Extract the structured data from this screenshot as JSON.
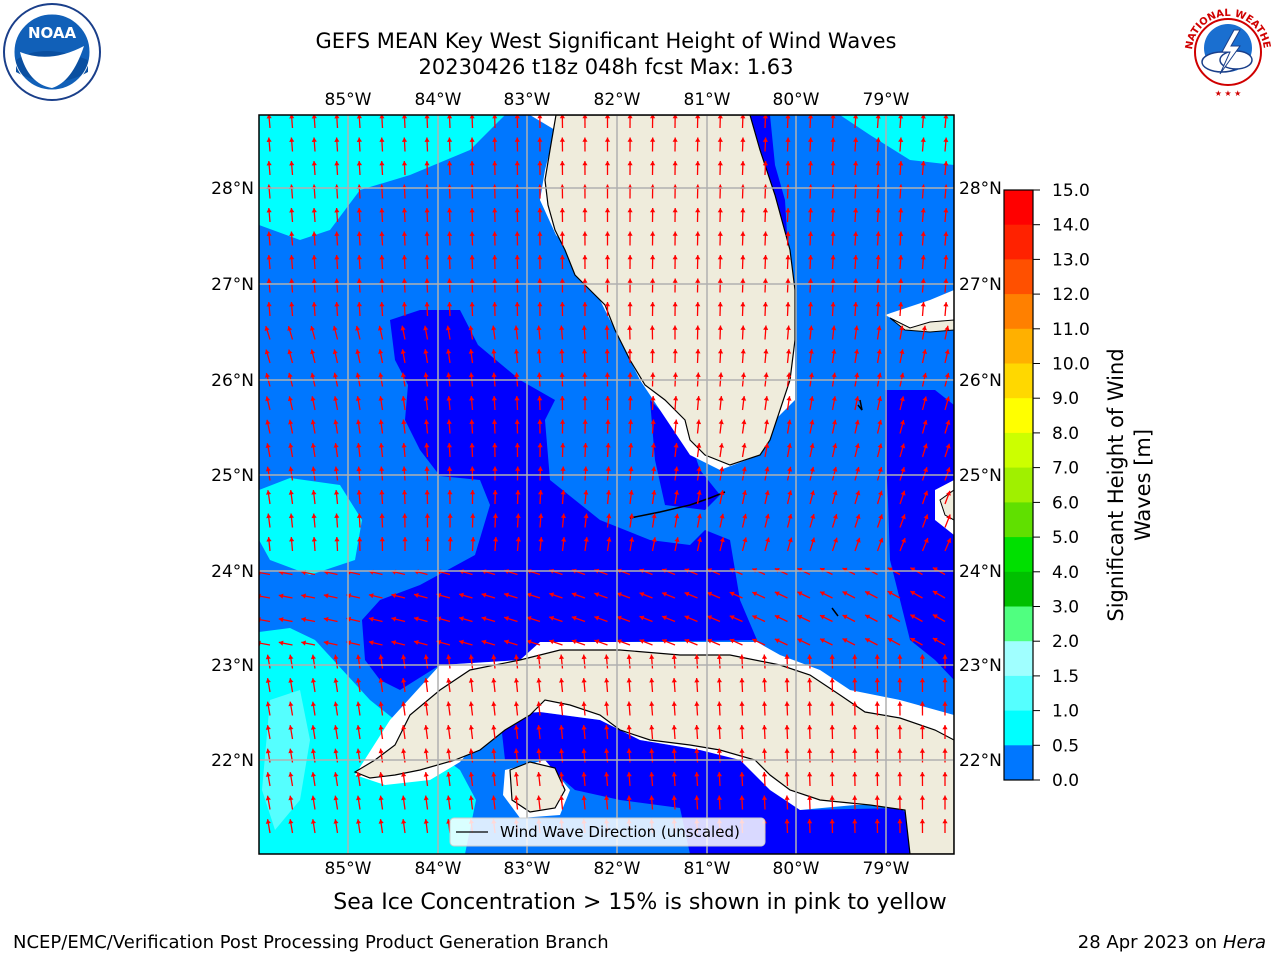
{
  "title": {
    "line1": "GEFS MEAN Key West Significant Height of Wind Waves",
    "line2": "20230426 t18z 048h fcst   Max: 1.63"
  },
  "map": {
    "lon_labels": [
      "85°W",
      "84°W",
      "83°W",
      "82°W",
      "81°W",
      "80°W",
      "79°W"
    ],
    "lat_labels": [
      "28°N",
      "27°N",
      "26°N",
      "25°N",
      "24°N",
      "23°N",
      "22°N"
    ],
    "legend_label": "Wind Wave Direction (unscaled)",
    "colors": {
      "land": "#efecdc",
      "band_0_0_5": "#0000ff",
      "band_0_5_1_0": "#0077ff",
      "band_1_0_1_5": "#00ffff",
      "band_1_5_2_0": "#55ffff",
      "arrows": "#ff0000",
      "grid": "#b0b0b0"
    }
  },
  "colorbar": {
    "title_line1": "Significant Height of Wind",
    "title_line2": "Waves [m]",
    "ticks": [
      "15.0",
      "14.0",
      "13.0",
      "12.0",
      "11.0",
      "10.0",
      "9.0",
      "8.0",
      "7.0",
      "6.0",
      "5.0",
      "4.0",
      "3.0",
      "2.0",
      "1.5",
      "1.0",
      "0.5",
      "0.0"
    ],
    "band_colors": [
      "#ff0000",
      "#ff2200",
      "#ff5000",
      "#ff8000",
      "#ffb000",
      "#ffd800",
      "#ffff00",
      "#ccff00",
      "#a0f000",
      "#60e000",
      "#00e000",
      "#00c000",
      "#50ff80",
      "#a0ffff",
      "#55ffff",
      "#00ffff",
      "#0077ff",
      "#0000ff"
    ]
  },
  "subtitle": "Sea Ice Concentration > 15% is shown in pink to yellow",
  "footer": {
    "left": "NCEP/EMC/Verification Post Processing Product Generation Branch",
    "right_date": "28 Apr 2023 on ",
    "right_host": "Hera"
  },
  "logos": {
    "left": "noaa-logo",
    "left_text": "NOAA",
    "right": "nws-logo",
    "right_text": "NATIONAL WEATHER SERVICE"
  }
}
